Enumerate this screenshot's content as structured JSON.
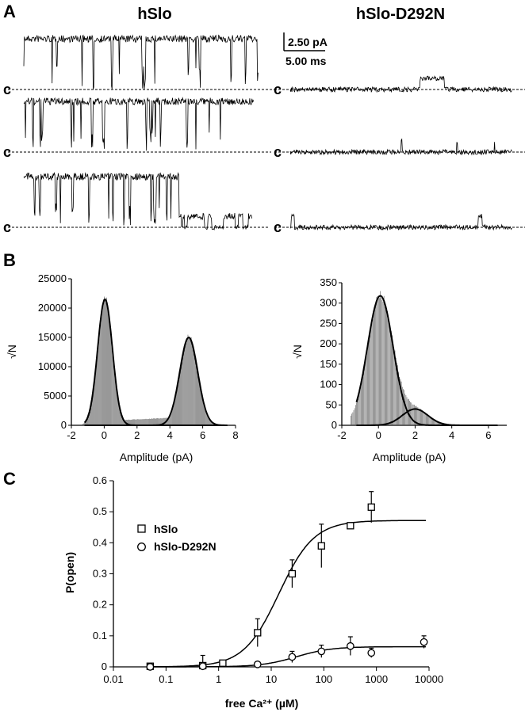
{
  "panel_labels": [
    "A",
    "B",
    "C"
  ],
  "panel_a": {
    "titles": [
      "hSlo",
      "hSlo-D292N"
    ],
    "closed_label": "c",
    "scale_current": "2.50 pA",
    "scale_time": "5.00 ms"
  },
  "chart_data": [
    {
      "type": "histogram",
      "panel": "B",
      "xlabel": "Amplitude (pA)",
      "ylabel": "√N",
      "xlim": [
        -2,
        8
      ],
      "ylim": [
        0,
        25000
      ],
      "xticks": [
        "-2",
        "0",
        "2",
        "4",
        "6",
        "8"
      ],
      "yticks": [
        "0",
        "5000",
        "10000",
        "15000",
        "20000",
        "25000"
      ],
      "gaussian_peaks": [
        {
          "mean": 0.05,
          "sd": 0.45,
          "height": 21500
        },
        {
          "mean": 5.15,
          "sd": 0.55,
          "height": 15000
        }
      ],
      "baseline_between_peaks": 1100
    },
    {
      "type": "histogram",
      "panel": "B",
      "xlabel": "Amplitude (pA)",
      "ylabel": "√N",
      "xlim": [
        -2,
        7
      ],
      "ylim": [
        0,
        350
      ],
      "xticks": [
        "-2",
        "0",
        "2",
        "4",
        "6"
      ],
      "yticks": [
        "0",
        "50",
        "100",
        "150",
        "200",
        "250",
        "300",
        "350"
      ],
      "gaussian_peaks": [
        {
          "mean": 0.1,
          "sd": 0.7,
          "height": 318
        },
        {
          "mean": 2.0,
          "sd": 0.7,
          "height": 40
        }
      ]
    },
    {
      "type": "scatter",
      "panel": "C",
      "xlabel": "free Ca²⁺ (µM)",
      "ylabel": "P(open)",
      "xscale": "log",
      "xlim": [
        0.01,
        10000
      ],
      "ylim": [
        0,
        0.6
      ],
      "xticks": [
        "0.01",
        "0.1",
        "1",
        "10",
        "100",
        "1000",
        "10000"
      ],
      "yticks": [
        "0",
        "0.1",
        "0.2",
        "0.3",
        "0.4",
        "0.5",
        "0.6"
      ],
      "legend_position": "left",
      "series": [
        {
          "name": "hSlo",
          "marker": "square",
          "x": [
            0.05,
            0.5,
            1.2,
            5.5,
            25,
            90,
            320,
            800
          ],
          "y": [
            0.002,
            0.004,
            0.012,
            0.11,
            0.3,
            0.39,
            0.455,
            0.515
          ],
          "err": [
            0.003,
            0.033,
            0.008,
            0.045,
            0.045,
            0.07,
            0.01,
            0.05
          ],
          "fit": {
            "top": 0.472,
            "ec50": 14,
            "hill": 1.3
          }
        },
        {
          "name": "hSlo-D292N",
          "marker": "circle",
          "x": [
            0.05,
            0.5,
            5.5,
            25,
            90,
            320,
            800,
            8000
          ],
          "y": [
            0.0,
            0.002,
            0.008,
            0.032,
            0.05,
            0.067,
            0.045,
            0.08
          ],
          "err": [
            0.002,
            0.002,
            0.003,
            0.018,
            0.02,
            0.03,
            0.015,
            0.02
          ],
          "fit": {
            "top": 0.065,
            "ec50": 30,
            "hill": 1.3
          }
        }
      ]
    }
  ]
}
